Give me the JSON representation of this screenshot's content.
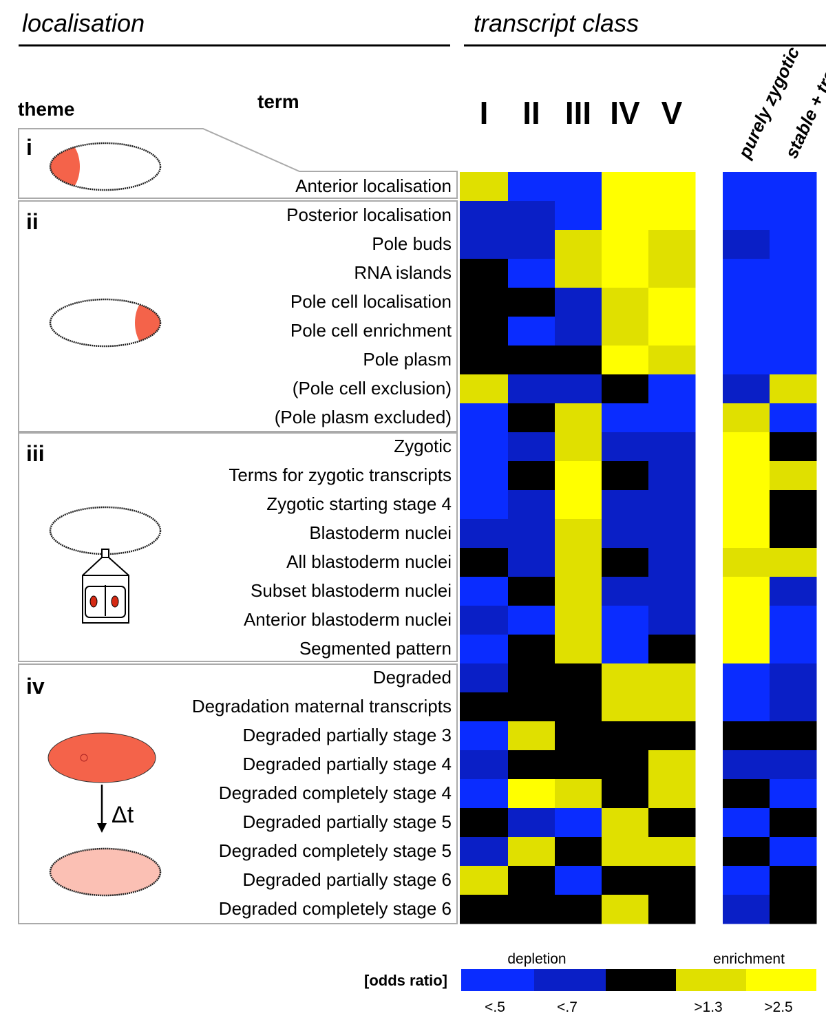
{
  "chart_data": {
    "type": "heatmap",
    "localisation_title": "localisation",
    "class_title": "transcript class",
    "theme_header": "theme",
    "term_header": "term",
    "columns": [
      "I",
      "II",
      "III",
      "IV",
      "V",
      "purely zygotic",
      "stable + transcribed"
    ],
    "groups": [
      {
        "theme": "i",
        "terms": [
          "Anterior localisation"
        ],
        "values": [
          [
            3,
            0,
            0,
            4,
            4,
            0,
            0
          ]
        ]
      },
      {
        "theme": "ii",
        "terms": [
          "Posterior localisation",
          "Pole buds",
          "RNA islands",
          "Pole cell localisation",
          "Pole cell enrichment",
          "Pole plasm",
          "(Pole cell exclusion)",
          "(Pole plasm excluded)"
        ],
        "values": [
          [
            1,
            1,
            0,
            4,
            4,
            0,
            0
          ],
          [
            1,
            1,
            3,
            4,
            3,
            1,
            0
          ],
          [
            2,
            0,
            3,
            4,
            3,
            0,
            0
          ],
          [
            2,
            2,
            1,
            3,
            4,
            0,
            0
          ],
          [
            2,
            0,
            1,
            3,
            4,
            0,
            0
          ],
          [
            2,
            2,
            2,
            4,
            3,
            0,
            0
          ],
          [
            3,
            1,
            1,
            2,
            0,
            1,
            3
          ],
          [
            0,
            2,
            3,
            0,
            0,
            3,
            0
          ]
        ]
      },
      {
        "theme": "iii",
        "terms": [
          "Zygotic",
          "Terms for zygotic transcripts",
          "Zygotic starting stage 4",
          "Blastoderm nuclei",
          "All blastoderm nuclei",
          "Subset blastoderm nuclei",
          "Anterior blastoderm nuclei",
          "Segmented pattern"
        ],
        "values": [
          [
            0,
            1,
            3,
            1,
            1,
            4,
            2
          ],
          [
            0,
            2,
            4,
            2,
            1,
            4,
            3
          ],
          [
            0,
            1,
            4,
            1,
            1,
            4,
            2
          ],
          [
            1,
            1,
            3,
            1,
            1,
            4,
            2
          ],
          [
            2,
            1,
            3,
            2,
            1,
            3,
            3
          ],
          [
            0,
            2,
            3,
            1,
            1,
            4,
            1
          ],
          [
            1,
            0,
            3,
            0,
            1,
            4,
            0
          ],
          [
            0,
            2,
            3,
            0,
            2,
            4,
            0
          ]
        ]
      },
      {
        "theme": "iv",
        "terms": [
          "Degraded",
          "Degradation maternal transcripts",
          "Degraded partially stage 3",
          "Degraded partially stage 4",
          "Degraded completely stage 4",
          "Degraded partially stage 5",
          "Degraded completely stage 5",
          "Degraded partially stage 6",
          "Degraded completely stage 6"
        ],
        "values": [
          [
            1,
            2,
            2,
            3,
            3,
            0,
            1
          ],
          [
            2,
            2,
            2,
            3,
            3,
            0,
            1
          ],
          [
            0,
            3,
            2,
            2,
            2,
            2,
            2
          ],
          [
            1,
            2,
            2,
            2,
            3,
            1,
            1
          ],
          [
            0,
            4,
            3,
            2,
            3,
            2,
            0
          ],
          [
            2,
            1,
            0,
            3,
            2,
            0,
            2
          ],
          [
            1,
            3,
            2,
            3,
            3,
            2,
            0
          ],
          [
            3,
            2,
            0,
            2,
            2,
            0,
            2
          ],
          [
            2,
            2,
            2,
            3,
            2,
            1,
            2
          ]
        ]
      }
    ],
    "levels": [
      {
        "label": "<.5",
        "color": "#0a2cff"
      },
      {
        "label": "<.7",
        "color": "#0a1fc6"
      },
      {
        "color": "#000000"
      },
      {
        "label": ">1.3",
        "color": "#e0e000"
      },
      {
        "label": ">2.5",
        "color": "#ffff00"
      }
    ],
    "legend_title": "[odds ratio]",
    "depletion_label": "depletion",
    "enrichment_label": "enrichment",
    "delta_label": "Δt"
  }
}
